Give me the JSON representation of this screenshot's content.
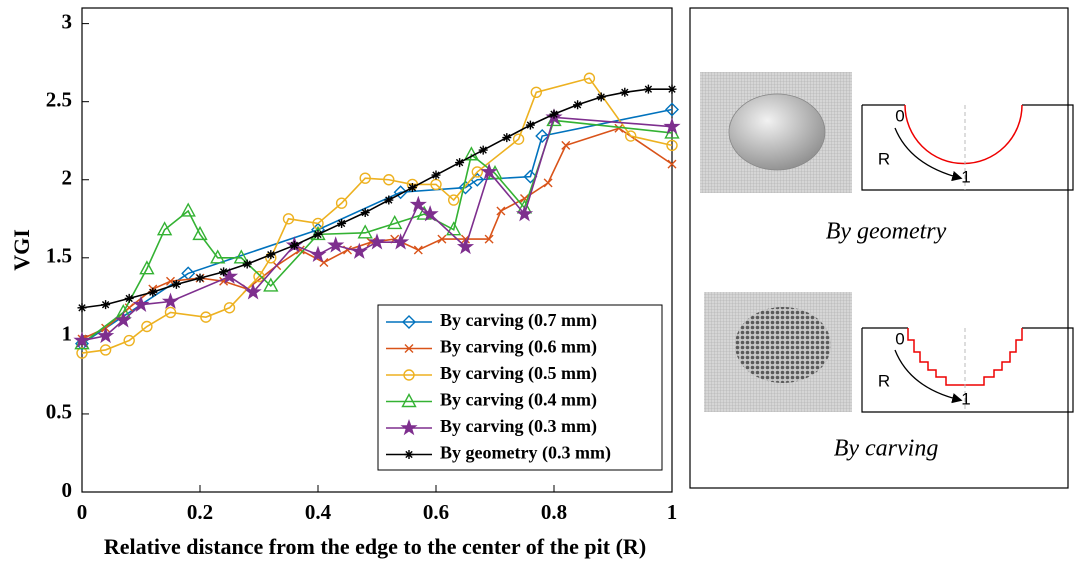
{
  "chart_data": {
    "type": "line",
    "xlabel": "Relative distance from the edge to the center of the pit (R)",
    "ylabel": "VGI",
    "xlim": [
      0,
      1
    ],
    "ylim": [
      0,
      3.1
    ],
    "xticks": [
      0,
      0.2,
      0.4,
      0.6,
      0.8,
      1
    ],
    "yticks": [
      0,
      0.5,
      1,
      1.5,
      2,
      2.5,
      3
    ],
    "legend": "lower right",
    "series": [
      {
        "name": "By carving (0.7 mm)",
        "color": "#0072bd",
        "marker": "diamond",
        "x": [
          0,
          0.18,
          0.4,
          0.54,
          0.65,
          0.67,
          0.76,
          0.78,
          1
        ],
        "values": [
          0.95,
          1.4,
          1.68,
          1.92,
          1.95,
          2.0,
          2.02,
          2.28,
          2.45
        ]
      },
      {
        "name": "By carving (0.6 mm)",
        "color": "#d95319",
        "marker": "x",
        "x": [
          0,
          0.04,
          0.08,
          0.12,
          0.15,
          0.2,
          0.24,
          0.28,
          0.33,
          0.37,
          0.41,
          0.45,
          0.49,
          0.53,
          0.57,
          0.61,
          0.65,
          0.69,
          0.71,
          0.75,
          0.79,
          0.82,
          0.91,
          1
        ],
        "values": [
          0.98,
          1.05,
          1.18,
          1.3,
          1.35,
          1.37,
          1.35,
          1.3,
          1.45,
          1.55,
          1.47,
          1.55,
          1.6,
          1.62,
          1.55,
          1.62,
          1.62,
          1.62,
          1.8,
          1.88,
          1.98,
          2.22,
          2.33,
          2.1
        ]
      },
      {
        "name": "By carving (0.5 mm)",
        "color": "#edb120",
        "marker": "circle",
        "x": [
          0,
          0.04,
          0.08,
          0.11,
          0.15,
          0.21,
          0.25,
          0.3,
          0.32,
          0.35,
          0.4,
          0.44,
          0.48,
          0.52,
          0.56,
          0.6,
          0.63,
          0.67,
          0.74,
          0.77,
          0.86,
          0.93,
          1
        ],
        "values": [
          0.89,
          0.91,
          0.97,
          1.06,
          1.15,
          1.12,
          1.18,
          1.38,
          1.5,
          1.75,
          1.72,
          1.85,
          2.01,
          2.0,
          1.97,
          1.97,
          1.87,
          2.05,
          2.26,
          2.56,
          2.65,
          2.28,
          2.22
        ]
      },
      {
        "name": "By carving (0.4 mm)",
        "color": "#34b233",
        "marker": "triangle",
        "x": [
          0,
          0.07,
          0.11,
          0.14,
          0.18,
          0.2,
          0.23,
          0.27,
          0.32,
          0.4,
          0.48,
          0.53,
          0.58,
          0.63,
          0.66,
          0.7,
          0.75,
          0.8,
          1
        ],
        "values": [
          0.95,
          1.15,
          1.43,
          1.68,
          1.8,
          1.65,
          1.5,
          1.5,
          1.32,
          1.65,
          1.66,
          1.72,
          1.78,
          1.68,
          2.16,
          2.04,
          1.82,
          2.38,
          2.3
        ]
      },
      {
        "name": "By carving (0.3 mm)",
        "color": "#7e2f8e",
        "marker": "star",
        "x": [
          0,
          0.04,
          0.07,
          0.1,
          0.15,
          0.25,
          0.29,
          0.36,
          0.4,
          0.43,
          0.47,
          0.5,
          0.54,
          0.57,
          0.59,
          0.65,
          0.69,
          0.75,
          0.8,
          1
        ],
        "values": [
          0.97,
          1.0,
          1.1,
          1.2,
          1.22,
          1.38,
          1.28,
          1.58,
          1.52,
          1.58,
          1.54,
          1.6,
          1.6,
          1.84,
          1.78,
          1.57,
          2.05,
          1.78,
          2.4,
          2.34
        ]
      },
      {
        "name": "By geometry (0.3 mm)",
        "color": "#000000",
        "marker": "asterisk",
        "x": [
          0,
          0.04,
          0.08,
          0.12,
          0.16,
          0.2,
          0.24,
          0.28,
          0.32,
          0.36,
          0.4,
          0.44,
          0.48,
          0.52,
          0.56,
          0.6,
          0.64,
          0.68,
          0.72,
          0.76,
          0.8,
          0.84,
          0.88,
          0.92,
          0.96,
          1
        ],
        "values": [
          1.18,
          1.2,
          1.24,
          1.28,
          1.33,
          1.37,
          1.41,
          1.46,
          1.52,
          1.58,
          1.65,
          1.72,
          1.79,
          1.87,
          1.95,
          2.03,
          2.11,
          2.19,
          2.27,
          2.35,
          2.42,
          2.48,
          2.53,
          2.56,
          2.58,
          2.58
        ]
      }
    ]
  },
  "diagram": {
    "panels": [
      {
        "caption": "By geometry",
        "start_label": "0",
        "radius_label": "R",
        "end_label": "1"
      },
      {
        "caption": "By carving",
        "start_label": "0",
        "radius_label": "R",
        "end_label": "1"
      }
    ]
  }
}
